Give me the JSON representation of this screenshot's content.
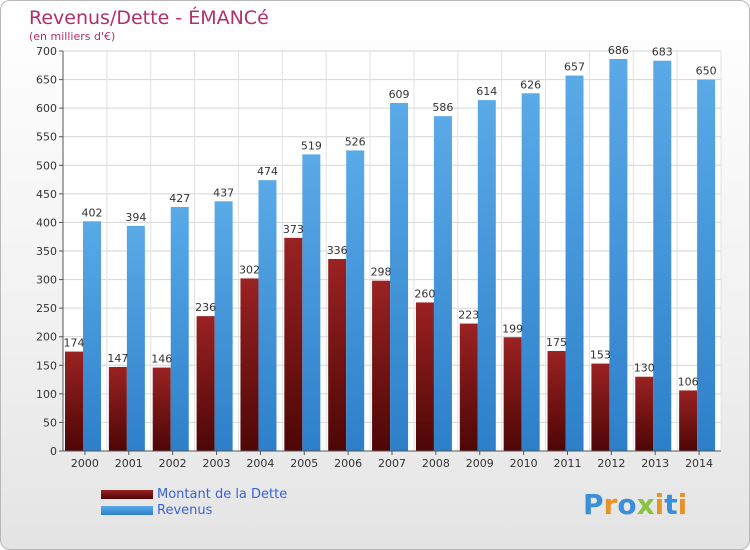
{
  "header": {
    "title": "Revenus/Dette - ÉMANCé",
    "subtitle": "(en milliers d'€)"
  },
  "legend": {
    "debt_label": "Montant de la Dette",
    "revenue_label": "Revenus"
  },
  "logo": {
    "letters": [
      "P",
      "r",
      "o",
      "x",
      "i",
      "t",
      "i"
    ],
    "colors": [
      "#3b8fd9",
      "#e8932a",
      "#3b8fd9",
      "#8ac43f",
      "#e8932a",
      "#3b8fd9",
      "#e8932a"
    ]
  },
  "colors": {
    "debt": "#7a1515",
    "revenue": "#4a9be0"
  },
  "chart_data": {
    "type": "bar",
    "title": "Revenus/Dette - ÉMANCé",
    "subtitle": "(en milliers d'€)",
    "categories": [
      "2000",
      "2001",
      "2002",
      "2003",
      "2004",
      "2005",
      "2006",
      "2007",
      "2008",
      "2009",
      "2010",
      "2011",
      "2012",
      "2013",
      "2014"
    ],
    "series": [
      {
        "name": "Montant de la Dette",
        "values": [
          174,
          147,
          146,
          236,
          302,
          373,
          336,
          298,
          260,
          223,
          199,
          175,
          153,
          130,
          106
        ]
      },
      {
        "name": "Revenus",
        "values": [
          402,
          394,
          427,
          437,
          474,
          519,
          526,
          609,
          586,
          614,
          626,
          657,
          686,
          683,
          650
        ]
      }
    ],
    "ylim": [
      0,
      700
    ],
    "yticks": [
      0,
      50,
      100,
      150,
      200,
      250,
      300,
      350,
      400,
      450,
      500,
      550,
      600,
      650,
      700
    ],
    "grid": true,
    "legend_position": "bottom-left"
  }
}
